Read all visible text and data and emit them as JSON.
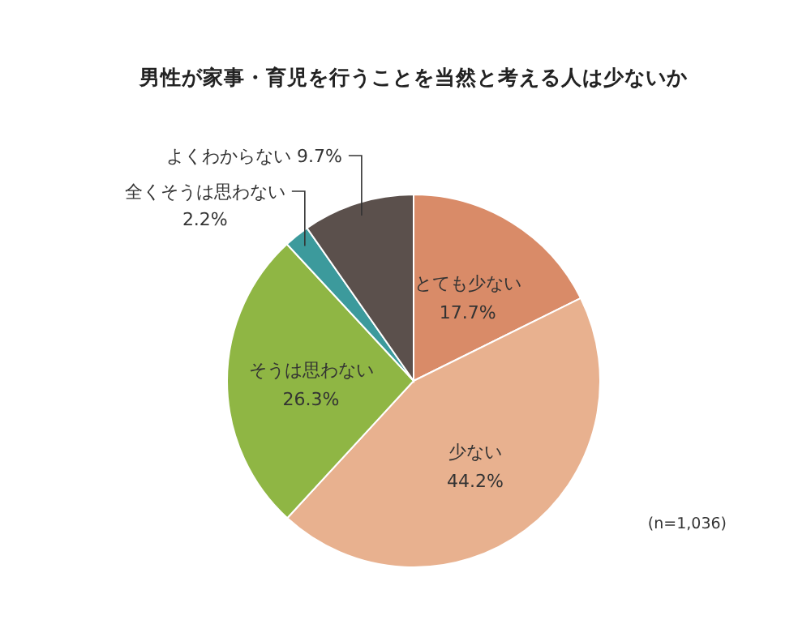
{
  "chart_data": {
    "type": "pie",
    "title": "男性が家事・育児を行うことを当然と考える人は少ないか",
    "categories": [
      "とても少ない",
      "少ない",
      "そうは思わない",
      "全くそうは思わない",
      "よくわからない"
    ],
    "values": [
      17.7,
      44.2,
      26.3,
      2.2,
      9.7
    ],
    "colors": [
      "#d98b68",
      "#e8b18f",
      "#8fb644",
      "#3c9a9c",
      "#5b504c"
    ],
    "value_labels": [
      "17.7%",
      "44.2%",
      "26.3%",
      "2.2%",
      "9.7%"
    ],
    "annotations": [
      "(n=1,036)"
    ]
  }
}
